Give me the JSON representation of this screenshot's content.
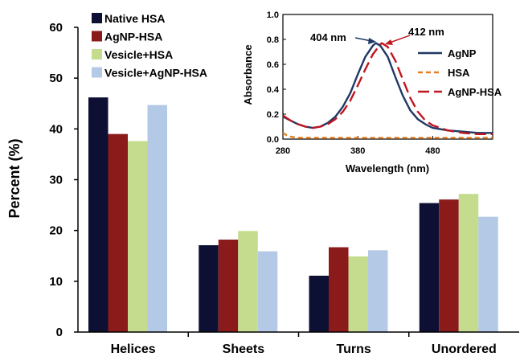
{
  "chart_data": [
    {
      "type": "bar",
      "categories": [
        "Helices",
        "Sheets",
        "Turns",
        "Unordered"
      ],
      "ylabel": "Percent (%)",
      "ylim": [
        0,
        60
      ],
      "yticks": [
        0,
        10,
        20,
        30,
        40,
        50,
        60
      ],
      "legend_position": "top-left",
      "series": [
        {
          "name": "Native HSA",
          "color": "#0e1033",
          "values": [
            46.2,
            17.1,
            11.1,
            25.4
          ]
        },
        {
          "name": "AgNP-HSA",
          "color": "#8b1a1a",
          "values": [
            39.0,
            18.2,
            16.7,
            26.1
          ]
        },
        {
          "name": "Vesicle+HSA",
          "color": "#c5dc8e",
          "values": [
            37.6,
            19.9,
            14.9,
            27.2
          ]
        },
        {
          "name": "Vesicle+AgNP-HSA",
          "color": "#b3c9e6",
          "values": [
            44.7,
            15.9,
            16.1,
            22.7
          ]
        }
      ]
    },
    {
      "type": "line",
      "xlabel": "Wavelength (nm)",
      "ylabel": "Absorbance",
      "xlim": [
        280,
        560
      ],
      "ylim": [
        0,
        1.0
      ],
      "xticks": [
        280,
        380,
        480
      ],
      "yticks": [
        "0.0",
        "0.2",
        "0.4",
        "0.6",
        "0.8",
        "1.0"
      ],
      "legend_position": "right",
      "annotations": [
        "404 nm",
        "412 nm"
      ],
      "series": [
        {
          "name": "AgNP",
          "color": "#1f3864",
          "style": "solid",
          "x": [
            280,
            290,
            300,
            310,
            320,
            330,
            340,
            350,
            360,
            370,
            380,
            390,
            400,
            404,
            410,
            420,
            430,
            440,
            450,
            460,
            470,
            480,
            500,
            520,
            540,
            560
          ],
          "y": [
            0.18,
            0.15,
            0.12,
            0.1,
            0.09,
            0.1,
            0.13,
            0.18,
            0.26,
            0.37,
            0.52,
            0.66,
            0.75,
            0.77,
            0.75,
            0.66,
            0.5,
            0.35,
            0.23,
            0.16,
            0.12,
            0.09,
            0.07,
            0.06,
            0.05,
            0.05
          ]
        },
        {
          "name": "HSA",
          "color": "#e67e22",
          "style": "dash",
          "x": [
            280,
            285,
            290,
            300,
            320,
            350,
            400,
            450,
            500,
            560
          ],
          "y": [
            0.05,
            0.03,
            0.02,
            0.01,
            0.01,
            0.01,
            0.01,
            0.01,
            0.01,
            0.01
          ]
        },
        {
          "name": "AgNP-HSA",
          "color": "#c0161f",
          "style": "longdash",
          "x": [
            280,
            290,
            300,
            310,
            320,
            330,
            340,
            350,
            360,
            370,
            380,
            390,
            400,
            410,
            412,
            420,
            430,
            440,
            450,
            460,
            470,
            480,
            500,
            520,
            540,
            560
          ],
          "y": [
            0.19,
            0.15,
            0.12,
            0.1,
            0.09,
            0.1,
            0.12,
            0.16,
            0.22,
            0.31,
            0.43,
            0.56,
            0.68,
            0.76,
            0.77,
            0.74,
            0.63,
            0.48,
            0.33,
            0.22,
            0.15,
            0.11,
            0.07,
            0.05,
            0.04,
            0.04
          ]
        }
      ]
    }
  ]
}
